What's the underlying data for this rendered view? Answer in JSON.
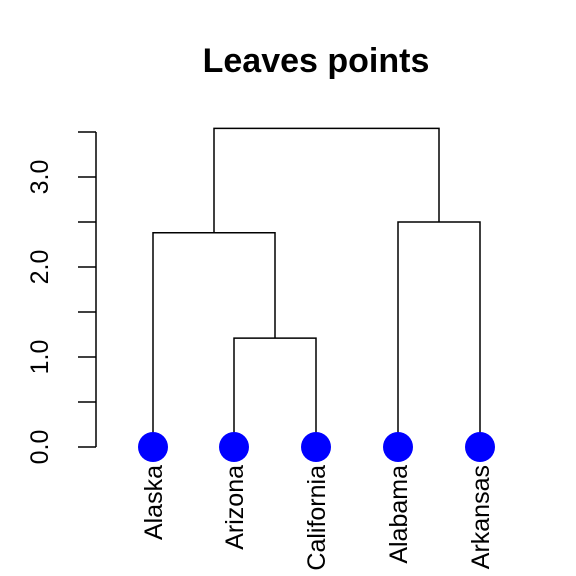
{
  "chart_data": {
    "type": "dendrogram",
    "title": "Leaves points",
    "xlabel": "",
    "ylabel": "",
    "ylim": [
      0,
      3.5
    ],
    "y_ticks": [
      0.0,
      0.5,
      1.0,
      1.5,
      2.0,
      2.5,
      3.0,
      3.5
    ],
    "y_tick_labels": [
      {
        "value": 0.0,
        "label": "0.0"
      },
      {
        "value": 1.0,
        "label": "1.0"
      },
      {
        "value": 2.0,
        "label": "2.0"
      },
      {
        "value": 3.0,
        "label": "3.0"
      }
    ],
    "leaves": [
      "Alaska",
      "Arizona",
      "California",
      "Alabama",
      "Arkansas"
    ],
    "leaf_point_color": "#0000ff",
    "merges": [
      {
        "left": "Arizona",
        "right": "California",
        "height": 1.21
      },
      {
        "left": "Alaska",
        "right": "Arizona+California",
        "height": 2.38
      },
      {
        "left": "Alabama",
        "right": "Arkansas",
        "height": 2.5
      },
      {
        "left": "Alaska+Arizona+California",
        "right": "Alabama+Arkansas",
        "height": 3.54
      }
    ]
  }
}
